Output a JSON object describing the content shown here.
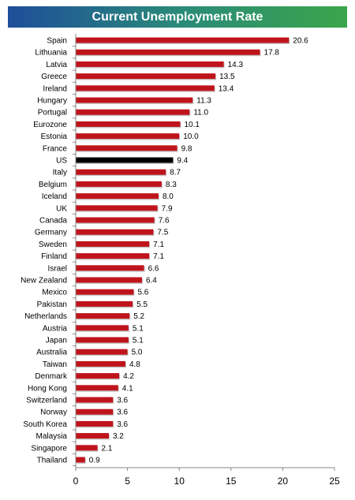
{
  "title": "Current Unemployment Rate",
  "colors": {
    "bar": "#c0141c",
    "highlight": "#000000",
    "axis": "#888888"
  },
  "chart_data": {
    "type": "bar",
    "orientation": "horizontal",
    "title": "Current Unemployment Rate",
    "highlight": "US",
    "xlim": [
      0,
      25
    ],
    "xticks": [
      "0",
      "5",
      "10",
      "15",
      "20",
      "25"
    ],
    "grid": false,
    "categories": [
      "Spain",
      "Lithuania",
      "Latvia",
      "Greece",
      "Ireland",
      "Hungary",
      "Portugal",
      "Eurozone",
      "Estonia",
      "France",
      "US",
      "Italy",
      "Belgium",
      "Iceland",
      "UK",
      "Canada",
      "Germany",
      "Sweden",
      "Finland",
      "Israel",
      "New Zealand",
      "Mexico",
      "Pakistan",
      "Netherlands",
      "Austria",
      "Japan",
      "Australia",
      "Taiwan",
      "Denmark",
      "Hong Kong",
      "Switzerland",
      "Norway",
      "South Korea",
      "Malaysia",
      "Singapore",
      "Thailand"
    ],
    "values": [
      20.6,
      17.8,
      14.3,
      13.5,
      13.4,
      11.3,
      11.0,
      10.1,
      10.0,
      9.8,
      9.4,
      8.7,
      8.3,
      8.0,
      7.9,
      7.6,
      7.5,
      7.1,
      7.1,
      6.6,
      6.4,
      5.6,
      5.5,
      5.2,
      5.1,
      5.1,
      5.0,
      4.8,
      4.2,
      4.1,
      3.6,
      3.6,
      3.6,
      3.2,
      2.1,
      0.9
    ],
    "labels": [
      "20.6",
      "17.8",
      "14.3",
      "13.5",
      "13.4",
      "11.3",
      "11.0",
      "10.1",
      "10.0",
      "9.8",
      "9.4",
      "8.7",
      "8.3",
      "8.0",
      "7.9",
      "7.6",
      "7.5",
      "7.1",
      "7.1",
      "6.6",
      "6.4",
      "5.6",
      "5.5",
      "5.2",
      "5.1",
      "5.1",
      "5.0",
      "4.8",
      "4.2",
      "4.1",
      "3.6",
      "3.6",
      "3.6",
      "3.2",
      "2.1",
      "0.9"
    ]
  }
}
